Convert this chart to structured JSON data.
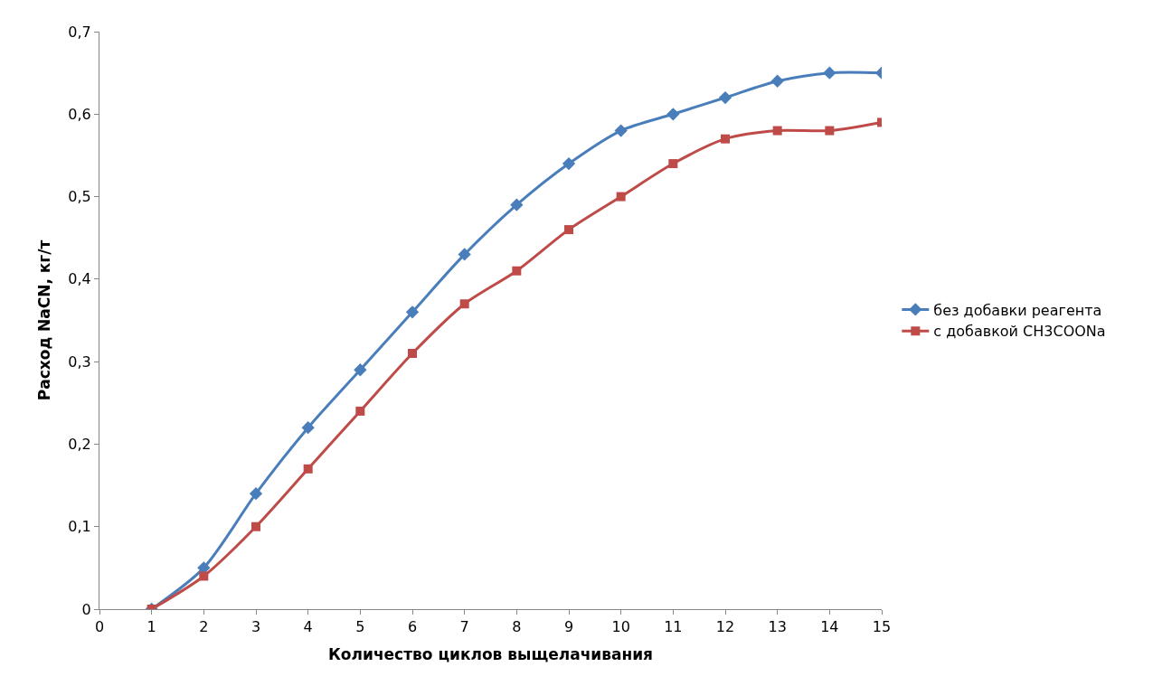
{
  "chart_data": {
    "type": "line",
    "xlabel": "Количество циклов выщелачивания",
    "ylabel": "Расход NaCN, кг/т",
    "x": [
      1,
      2,
      3,
      4,
      5,
      6,
      7,
      8,
      9,
      10,
      11,
      12,
      13,
      14,
      15
    ],
    "series": [
      {
        "name": "без добавки реагента",
        "color": "#4a7ebb",
        "marker": "diamond",
        "values": [
          0,
          0.05,
          0.14,
          0.22,
          0.29,
          0.36,
          0.43,
          0.49,
          0.54,
          0.58,
          0.6,
          0.62,
          0.64,
          0.65,
          0.65
        ]
      },
      {
        "name": "с добавкой CH3COONa",
        "color": "#be4b48",
        "marker": "square",
        "values": [
          0,
          0.04,
          0.1,
          0.17,
          0.24,
          0.31,
          0.37,
          0.41,
          0.46,
          0.5,
          0.54,
          0.57,
          0.58,
          0.58,
          0.59
        ]
      }
    ],
    "xlim": [
      0,
      15
    ],
    "xticks": [
      0,
      1,
      2,
      3,
      4,
      5,
      6,
      7,
      8,
      9,
      10,
      11,
      12,
      13,
      14,
      15
    ],
    "ylim": [
      0,
      0.7
    ],
    "yticks": [
      {
        "value": 0,
        "label": "0"
      },
      {
        "value": 0.1,
        "label": "0,1"
      },
      {
        "value": 0.2,
        "label": "0,2"
      },
      {
        "value": 0.3,
        "label": "0,3"
      },
      {
        "value": 0.4,
        "label": "0,4"
      },
      {
        "value": 0.5,
        "label": "0,5"
      },
      {
        "value": 0.6,
        "label": "0,6"
      },
      {
        "value": 0.7,
        "label": "0,7"
      }
    ],
    "legend": "right",
    "line_style": "solid"
  }
}
